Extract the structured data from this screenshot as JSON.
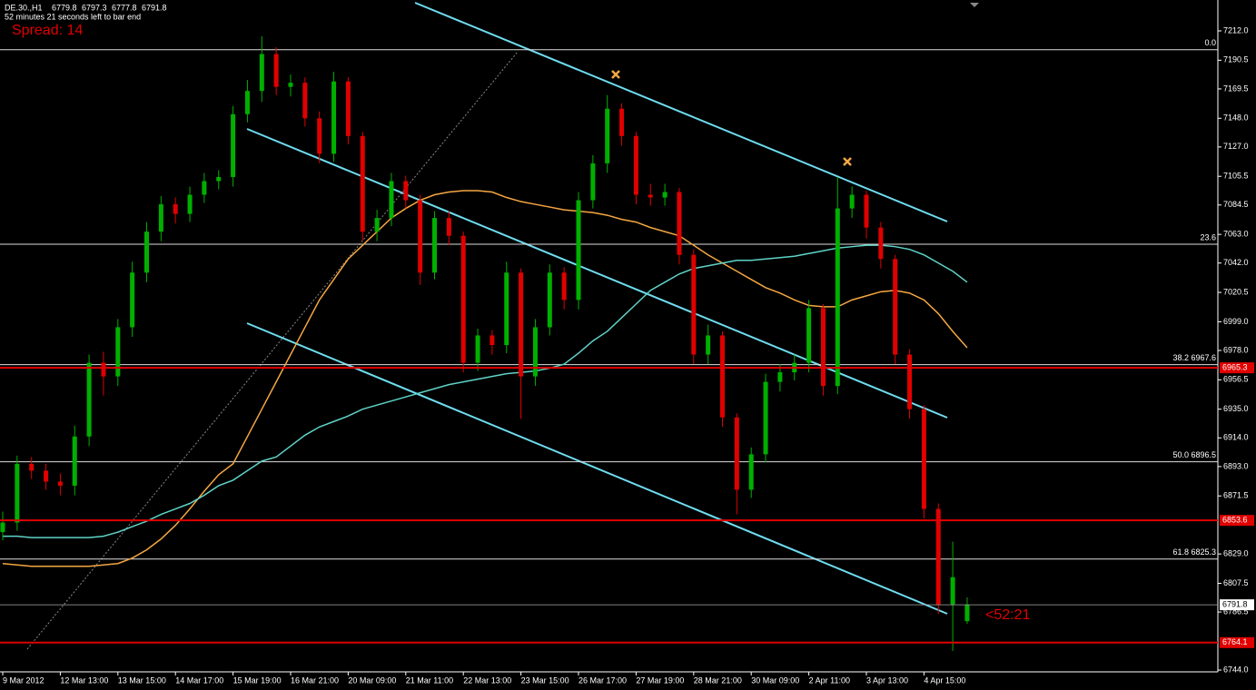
{
  "chart_data": {
    "type": "candlestick",
    "title": "DE.30.,H1",
    "timer_text": "52 minutes 21 seconds left to bar end",
    "spread_text": "Spread: 14",
    "countdown_text": "<52:21",
    "categories": [
      "9 Mar 2012",
      null,
      null,
      null,
      "12 Mar 13:00",
      null,
      null,
      null,
      "13 Mar 15:00",
      null,
      null,
      null,
      "14 Mar 17:00",
      null,
      null,
      null,
      "15 Mar 19:00",
      null,
      null,
      null,
      "16 Mar 21:00",
      null,
      null,
      null,
      "20 Mar 09:00",
      null,
      null,
      null,
      "21 Mar 11:00",
      null,
      null,
      null,
      "22 Mar 13:00",
      null,
      null,
      null,
      "23 Mar 15:00",
      null,
      null,
      null,
      "26 Mar 17:00",
      null,
      null,
      null,
      "27 Mar 19:00",
      null,
      null,
      null,
      "28 Mar 21:00",
      null,
      null,
      null,
      "30 Mar 09:00",
      null,
      null,
      null,
      "2 Apr 11:00",
      null,
      null,
      null,
      "3 Apr 13:00",
      null,
      null,
      null,
      "4 Apr 15:00",
      null,
      null,
      null
    ],
    "open": [
      6845,
      6852,
      6895,
      6890,
      6882,
      6879,
      6915,
      6969,
      6959,
      6995,
      7035,
      7065,
      7085,
      7078,
      7092,
      7102,
      7105,
      7151,
      7168,
      7195,
      7171,
      7174,
      7148,
      7122,
      7175,
      7135,
      7065,
      7075,
      7102,
      7088,
      7035,
      7075,
      7062,
      6969,
      6989,
      6982,
      7035,
      6959,
      6995,
      7035,
      7015,
      7088,
      7115,
      7155,
      7135,
      7092,
      7090,
      7094,
      7048,
      6975,
      6989,
      6929,
      6876,
      6902,
      6955,
      6962,
      6969,
      7009,
      6952,
      7082,
      7092,
      7068,
      7045,
      6975,
      6935,
      6862,
      6792,
      6779.8
    ],
    "high": [
      6860,
      6901,
      6900,
      6895,
      6888,
      6923,
      6975,
      6977,
      7001,
      7043,
      7072,
      7091,
      7090,
      7098,
      7108,
      7110,
      7157,
      7176,
      7208,
      7200,
      7180,
      7178,
      7153,
      7182,
      7178,
      7138,
      7081,
      7108,
      7106,
      7092,
      7080,
      7080,
      7065,
      6994,
      6993,
      7043,
      7038,
      7001,
      7041,
      7039,
      7094,
      7121,
      7165,
      7159,
      7138,
      7100,
      7100,
      7097,
      7052,
      6997,
      6992,
      6932,
      6907,
      6961,
      6968,
      6975,
      7015,
      7012,
      7105,
      7098,
      7095,
      7072,
      7048,
      6979,
      6938,
      6866,
      6838,
      6797.3
    ],
    "low": [
      6839,
      6846,
      6884,
      6876,
      6872,
      6872,
      6908,
      6945,
      6952,
      6988,
      7028,
      7058,
      7071,
      7072,
      7086,
      7096,
      7098,
      7145,
      7160,
      7165,
      7164,
      7142,
      7115,
      7116,
      7129,
      7058,
      7058,
      7069,
      7082,
      7026,
      7030,
      7055,
      6962,
      6963,
      6975,
      6976,
      6928,
      6952,
      6989,
      7008,
      7008,
      7082,
      7108,
      7128,
      7085,
      7084,
      7084,
      7041,
      6968,
      6968,
      6922,
      6858,
      6870,
      6896,
      6948,
      6956,
      6962,
      6945,
      6946,
      7075,
      7060,
      7038,
      6968,
      6928,
      6855,
      6785,
      6758,
      6777.8
    ],
    "close": [
      6852,
      6895,
      6890,
      6882,
      6879,
      6915,
      6969,
      6959,
      6995,
      7035,
      7065,
      7085,
      7078,
      7092,
      7102,
      7105,
      7151,
      7168,
      7195,
      7171,
      7174,
      7148,
      7122,
      7175,
      7135,
      7065,
      7075,
      7102,
      7088,
      7035,
      7075,
      7062,
      6969,
      6989,
      6982,
      7035,
      6959,
      6995,
      7035,
      7015,
      7088,
      7115,
      7155,
      7135,
      7092,
      7090,
      7094,
      7048,
      6975,
      6989,
      6929,
      6876,
      6902,
      6955,
      6962,
      6969,
      7009,
      6952,
      7082,
      7092,
      7068,
      7045,
      6975,
      6935,
      6862,
      6792,
      6812,
      6791.8
    ],
    "up_color": "#00b000",
    "down_color": "#e00000",
    "moving_averages": [
      {
        "color": "#f5a742",
        "values": [
          6822,
          6821,
          6820,
          6820,
          6820,
          6820,
          6820,
          6821,
          6822,
          6826,
          6832,
          6840,
          6850,
          6862,
          6875,
          6887,
          6895,
          6915,
          6935,
          6955,
          6975,
          6995,
          7015,
          7030,
          7045,
          7055,
          7065,
          7075,
          7082,
          7088,
          7092,
          7094,
          7095,
          7095,
          7094,
          7090,
          7087,
          7085,
          7083,
          7081,
          7080,
          7079,
          7077,
          7074,
          7072,
          7068,
          7065,
          7062,
          7055,
          7048,
          7042,
          7036,
          7030,
          7024,
          7020,
          7015,
          7011,
          7010,
          7010,
          7015,
          7018,
          7021,
          7022,
          7020,
          7015,
          7005,
          6992,
          6980
        ]
      },
      {
        "color": "#5fd3c8",
        "values": [
          6842,
          6842,
          6841,
          6841,
          6841,
          6841,
          6841,
          6842,
          6845,
          6849,
          6853,
          6858,
          6862,
          6866,
          6872,
          6879,
          6883,
          6890,
          6897,
          6900,
          6908,
          6916,
          6922,
          6926,
          6930,
          6935,
          6938,
          6941,
          6944,
          6947,
          6950,
          6953,
          6955,
          6957,
          6959,
          6961,
          6962,
          6963,
          6965,
          6968,
          6976,
          6985,
          6992,
          7002,
          7012,
          7022,
          7028,
          7034,
          7038,
          7040,
          7042,
          7044,
          7044,
          7045,
          7046,
          7047,
          7049,
          7051,
          7053,
          7054,
          7055,
          7055,
          7054,
          7052,
          7048,
          7042,
          7036,
          7028
        ]
      }
    ],
    "fib_levels": [
      {
        "value": 7198.2,
        "label": "0.0"
      },
      {
        "value": 7055.8,
        "label": "23.6"
      },
      {
        "value": 6967.6,
        "label": "38.2 6967.6"
      },
      {
        "value": 6896.5,
        "label": "50.0 6896.5"
      },
      {
        "value": 6825.3,
        "label": "61.8 6825.3"
      }
    ],
    "levels": [
      6965.3,
      6853.6,
      6764.1
    ],
    "level_color": "#e00000",
    "ylim": [
      6742.7,
      7234.6
    ],
    "yticks": [
      {
        "value": 7212,
        "label": "7212.0"
      },
      7190.5,
      7169.5,
      {
        "value": 7148,
        "label": "7148.0"
      },
      {
        "value": 7127,
        "label": "7127.0"
      },
      7105.5,
      7084.5,
      {
        "value": 7063,
        "label": "7063.0"
      },
      {
        "value": 7042,
        "label": "7042.0"
      },
      7020.5,
      {
        "value": 6999,
        "label": "6999.0"
      },
      {
        "value": 6978,
        "label": "6978.0"
      },
      6956.5,
      {
        "value": 6935,
        "label": "6935.0"
      },
      {
        "value": 6914,
        "label": "6914.0"
      },
      {
        "value": 6893,
        "label": "6893.0"
      },
      6871.5,
      {
        "value": 6829,
        "label": "6829.0"
      },
      6807.5,
      6786.5,
      {
        "value": 6744,
        "label": "6744.0"
      }
    ]
  }
}
